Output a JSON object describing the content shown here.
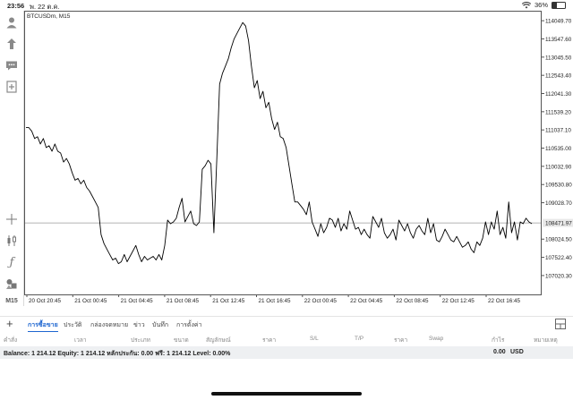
{
  "status_bar": {
    "time": "23:56",
    "date": "พ. 22 ต.ค.",
    "battery": "36%",
    "battery_level": 0.36
  },
  "chart": {
    "symbol": "BTCUSDm, M15",
    "current_price": "108471.97"
  },
  "left_toolbar": {
    "timeframe_label": "M15"
  },
  "chart_data": {
    "type": "line",
    "title": "BTCUSDm, M15",
    "xlabel": "",
    "ylabel": "",
    "ylim": [
      106500,
      114300
    ],
    "x_ticks": [
      "20 Oct 20:45",
      "21 Oct 00:45",
      "21 Oct 04:45",
      "21 Oct 08:45",
      "21 Oct 12:45",
      "21 Oct 16:45",
      "22 Oct 00:45",
      "22 Oct 04:45",
      "22 Oct 08:45",
      "22 Oct 12:45",
      "22 Oct 16:45"
    ],
    "y_ticks": [
      "114049.70",
      "113547.60",
      "113045.50",
      "112543.40",
      "112041.30",
      "111539.20",
      "111037.10",
      "110535.00",
      "110032.90",
      "109530.80",
      "109028.70",
      "108471.97",
      "108024.50",
      "107522.40",
      "107020.30"
    ],
    "current_price": 108471.97,
    "grid": false,
    "series": [
      {
        "values": [
          111100,
          111100,
          111000,
          110800,
          110850,
          110650,
          110800,
          110550,
          110600,
          110450,
          110650,
          110450,
          110400,
          110150,
          110250,
          110100,
          109850,
          109650,
          109700,
          109550,
          109650,
          109450,
          109350,
          109200,
          109050,
          108900,
          108150,
          107900,
          107750,
          107600,
          107450,
          107500,
          107350,
          107400,
          107600,
          107400,
          107550,
          107700,
          107850,
          107600,
          107400,
          107550,
          107450,
          107500,
          107550,
          107450,
          107600,
          107450,
          107850,
          108550,
          108450,
          108500,
          108600,
          108900,
          109150,
          108500,
          108650,
          108800,
          108450,
          108400,
          108500,
          109950,
          110050,
          110200,
          110100,
          108200,
          110200,
          112300,
          112600,
          112800,
          113000,
          113300,
          113550,
          113700,
          113850,
          114000,
          113900,
          113500,
          112800,
          112200,
          112400,
          111900,
          112100,
          111650,
          111800,
          111350,
          111050,
          111250,
          110850,
          110800,
          110550,
          110050,
          109550,
          109050,
          109050,
          108950,
          108850,
          108700,
          109050,
          108500,
          108300,
          108100,
          108450,
          108200,
          108350,
          108600,
          108550,
          108350,
          108600,
          108250,
          108450,
          108300,
          108800,
          108550,
          108300,
          108350,
          108150,
          108300,
          108150,
          108050,
          108650,
          108500,
          108350,
          108600,
          108200,
          108050,
          108150,
          108300,
          108000,
          108550,
          108400,
          108250,
          108450,
          108200,
          108050,
          108300,
          108400,
          108250,
          108150,
          108600,
          108200,
          108450,
          108000,
          107950,
          108100,
          108300,
          108150,
          108000,
          107950,
          108100,
          107950,
          107800,
          107850,
          107950,
          107750,
          107650,
          107950,
          107850,
          108050,
          108500,
          108150,
          108500,
          108300,
          108800,
          108150,
          108350,
          108050,
          109050,
          108200,
          108500,
          108000,
          108500,
          108450,
          108600,
          108500,
          108450
        ]
      }
    ]
  },
  "tabs": [
    {
      "label": "การซื้อขาย",
      "active": true
    },
    {
      "label": "ประวัติ",
      "active": false
    },
    {
      "label": "กล่องจดหมาย",
      "active": false
    },
    {
      "label": "ข่าว",
      "active": false
    },
    {
      "label": "บันทึก",
      "active": false
    },
    {
      "label": "การตั้งค่า",
      "active": false
    }
  ],
  "columns": [
    "คำสั่ง",
    "เวลา",
    "ประเภท",
    "ขนาด",
    "สัญลักษณ์",
    "ราคา",
    "S/L",
    "T/P",
    "ราคา",
    "Swap",
    "กำไร",
    "หมายเหตุ"
  ],
  "balance": {
    "text": "Balance: 1 214.12 Equity: 1 214.12 หลักประกัน: 0.00 ฟรี: 1 214.12 Level: 0.00%",
    "profit": "0.00",
    "currency": "USD"
  }
}
